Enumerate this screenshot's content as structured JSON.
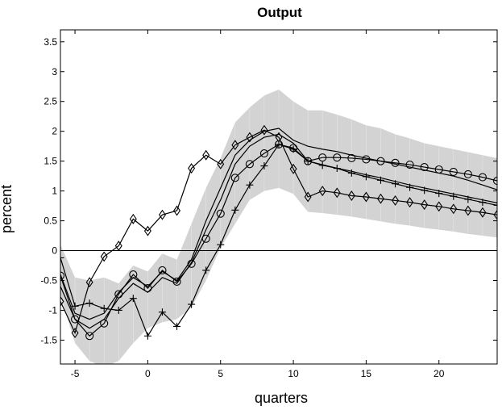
{
  "chart_data": {
    "type": "line",
    "title": "Output",
    "xlabel": "quarters",
    "ylabel": "percent",
    "xlim": [
      -6,
      24
    ],
    "ylim": [
      -1.9,
      3.7
    ],
    "x_ticks": [
      -5,
      0,
      5,
      10,
      15,
      20
    ],
    "y_ticks": [
      -1.5,
      -1,
      -0.5,
      0,
      0.5,
      1,
      1.5,
      2,
      2.5,
      3,
      3.5
    ],
    "x_tick_labels": [
      "-5",
      "0",
      "5",
      "10",
      "15",
      "20"
    ],
    "y_tick_labels": [
      "-1.5",
      "-1",
      "-0.5",
      "0",
      "0.5",
      "1",
      "1.5",
      "2",
      "2.5",
      "3",
      "3.5"
    ],
    "grid": false,
    "zero_line": true,
    "band_color": "#d3d3d3",
    "line_color": "#000000",
    "band": {
      "x": [
        -6,
        -5,
        -4,
        -3,
        -2,
        -1,
        0,
        1,
        2,
        3,
        4,
        5,
        6,
        7,
        8,
        9,
        10,
        11,
        12,
        13,
        14,
        15,
        16,
        17,
        18,
        19,
        20,
        21,
        22,
        23,
        24
      ],
      "upper": [
        0.1,
        -0.45,
        -0.5,
        -0.45,
        -0.55,
        -0.25,
        -0.35,
        -0.05,
        -0.15,
        0.45,
        1.05,
        1.55,
        2.15,
        2.4,
        2.6,
        2.7,
        2.5,
        2.35,
        2.35,
        2.28,
        2.2,
        2.1,
        2.05,
        1.95,
        1.88,
        1.8,
        1.75,
        1.7,
        1.65,
        1.6,
        1.55
      ],
      "lower": [
        -0.75,
        -1.55,
        -1.85,
        -1.95,
        -1.85,
        -1.55,
        -1.3,
        -1.2,
        -1.15,
        -0.95,
        -0.5,
        0.05,
        0.45,
        0.85,
        1.0,
        1.05,
        0.95,
        0.65,
        0.63,
        0.6,
        0.57,
        0.53,
        0.49,
        0.45,
        0.42,
        0.38,
        0.35,
        0.32,
        0.28,
        0.25,
        0.22
      ]
    },
    "x": [
      -6,
      -5,
      -4,
      -3,
      -2,
      -1,
      0,
      1,
      2,
      3,
      4,
      5,
      6,
      7,
      8,
      9,
      10,
      11,
      12,
      13,
      14,
      15,
      16,
      17,
      18,
      19,
      20,
      21,
      22,
      23,
      24
    ],
    "series": [
      {
        "marker": "none",
        "values": [
          -0.4,
          -1.05,
          -1.15,
          -1.05,
          -0.7,
          -0.45,
          -0.6,
          -0.35,
          -0.5,
          -0.15,
          0.5,
          1.05,
          1.6,
          1.85,
          2.0,
          2.05,
          1.85,
          1.75,
          1.7,
          1.66,
          1.6,
          1.55,
          1.5,
          1.45,
          1.4,
          1.35,
          1.3,
          1.25,
          1.18,
          1.1,
          1.02
        ]
      },
      {
        "marker": "none",
        "values": [
          -0.6,
          -1.15,
          -1.3,
          -1.15,
          -0.8,
          -0.55,
          -0.7,
          -0.45,
          -0.55,
          -0.2,
          0.35,
          0.85,
          1.45,
          1.75,
          1.9,
          1.95,
          1.8,
          1.5,
          1.44,
          1.38,
          1.33,
          1.27,
          1.22,
          1.16,
          1.1,
          1.05,
          1.0,
          0.95,
          0.9,
          0.85,
          0.8
        ]
      },
      {
        "marker": "circle",
        "values": [
          -0.42,
          -1.15,
          -1.43,
          -1.22,
          -0.73,
          -0.4,
          -0.63,
          -0.33,
          -0.52,
          -0.22,
          0.2,
          0.62,
          1.22,
          1.45,
          1.63,
          1.78,
          1.72,
          1.5,
          1.56,
          1.56,
          1.55,
          1.53,
          1.5,
          1.47,
          1.44,
          1.4,
          1.36,
          1.32,
          1.28,
          1.23,
          1.17
        ]
      },
      {
        "marker": "plus",
        "values": [
          -0.12,
          -0.93,
          -0.88,
          -0.97,
          -1.0,
          -0.8,
          -1.43,
          -1.03,
          -1.27,
          -0.9,
          -0.33,
          0.1,
          0.68,
          1.1,
          1.42,
          1.78,
          1.7,
          1.5,
          1.43,
          1.38,
          1.3,
          1.24,
          1.18,
          1.12,
          1.06,
          1.01,
          0.96,
          0.91,
          0.86,
          0.81,
          0.76
        ]
      },
      {
        "marker": "diamond",
        "values": [
          -0.85,
          -1.38,
          -0.53,
          -0.1,
          0.08,
          0.53,
          0.33,
          0.6,
          0.67,
          1.38,
          1.6,
          1.45,
          1.77,
          1.9,
          2.02,
          1.9,
          1.37,
          0.9,
          1.0,
          0.97,
          0.92,
          0.9,
          0.87,
          0.84,
          0.81,
          0.77,
          0.74,
          0.7,
          0.67,
          0.64,
          0.6
        ]
      }
    ]
  }
}
